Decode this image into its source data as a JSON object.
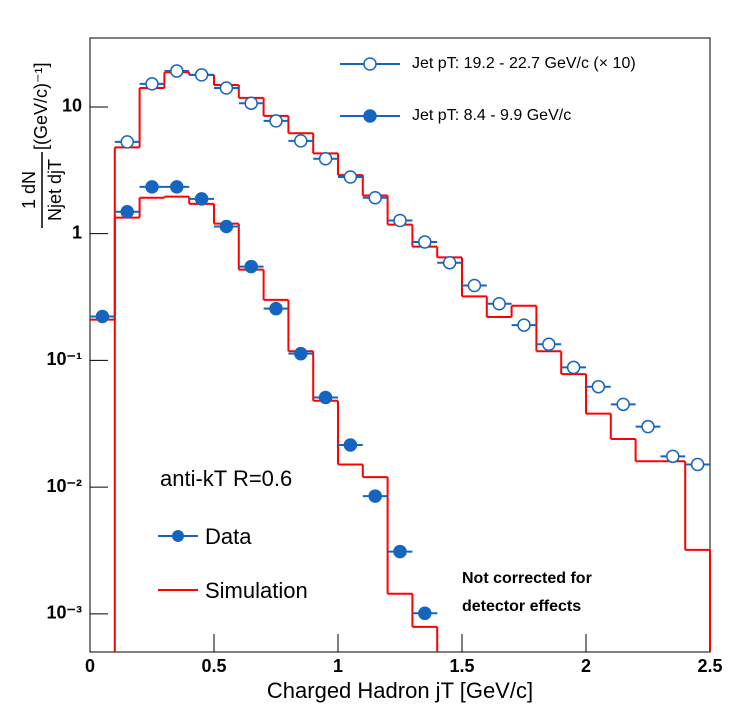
{
  "chart_data": {
    "type": "histogram",
    "x_label": "Charged Hadron jT [GeV/c]",
    "y_label": {
      "numerator": "1 dN",
      "denominator": "Njet djT",
      "unit": "[(GeV/c)⁻¹]"
    },
    "log_y": true,
    "xlim": [
      0,
      2.5
    ],
    "ylim": [
      0.0005,
      35
    ],
    "xticks": [
      0,
      0.5,
      1,
      1.5,
      2,
      2.5
    ],
    "yticks": [
      {
        "value": 0.001,
        "label": "10⁻³"
      },
      {
        "value": 0.01,
        "label": "10⁻²"
      },
      {
        "value": 0.1,
        "label": "10⁻¹"
      },
      1,
      10
    ],
    "bins": [
      0,
      0.1,
      0.2,
      0.3,
      0.4,
      0.5,
      0.6,
      0.7,
      0.8,
      0.9,
      1.0,
      1.1,
      1.2,
      1.3,
      1.4,
      1.5,
      1.6,
      1.7,
      1.8,
      1.9,
      2.0,
      2.1,
      2.2,
      2.3,
      2.4,
      2.5
    ],
    "series": [
      {
        "name": "Jet pT: 19.2 - 22.7 GeV/c (× 10)",
        "color": "#1565c0",
        "marker": "open",
        "values": [
          null,
          5.3,
          15.2,
          19.2,
          17.9,
          14.1,
          10.7,
          7.76,
          5.4,
          3.9,
          2.8,
          1.92,
          1.27,
          0.86,
          0.59,
          0.39,
          0.28,
          0.19,
          0.134,
          0.088,
          0.062,
          0.045,
          0.03,
          0.0175,
          0.0151
        ],
        "simulation": [
          null,
          4.8,
          14.1,
          18.8,
          17.9,
          14.9,
          11.8,
          8.5,
          6.2,
          4.3,
          2.9,
          2.0,
          1.18,
          0.79,
          0.65,
          0.32,
          0.22,
          0.27,
          0.118,
          0.078,
          0.038,
          0.024,
          0.016,
          0.016,
          0.0032
        ]
      },
      {
        "name": "Jet pT: 8.4 - 9.9 GeV/c",
        "color": "#1565c0",
        "marker": "filled",
        "values": [
          0.222,
          1.49,
          2.34,
          2.34,
          1.88,
          1.14,
          0.55,
          0.256,
          0.113,
          0.051,
          0.0215,
          0.0085,
          0.0031,
          0.00101,
          null,
          null,
          null,
          null,
          null,
          null,
          null,
          null,
          null,
          null,
          null
        ],
        "simulation": [
          0.21,
          1.34,
          1.92,
          1.96,
          1.72,
          1.2,
          0.52,
          0.3,
          0.118,
          0.048,
          0.0151,
          0.012,
          0.00144,
          0.00079,
          null,
          null,
          null,
          null,
          null,
          null,
          null,
          null,
          null,
          null,
          null
        ]
      }
    ],
    "simulation_color": "#ff0000",
    "annotation": "anti-kT R=0.6",
    "legend_data": "Data",
    "legend_simulation": "Simulation",
    "note": [
      "Not corrected for",
      "detector effects"
    ]
  }
}
